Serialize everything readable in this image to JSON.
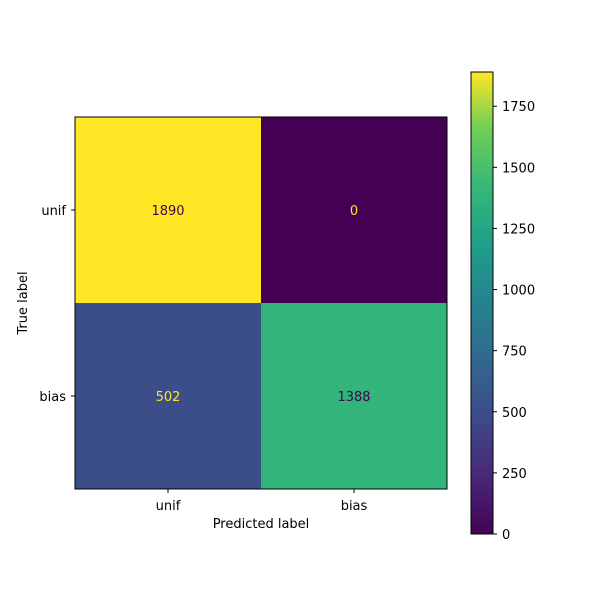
{
  "chart_data": {
    "type": "heatmap",
    "xlabel": "Predicted label",
    "ylabel": "True label",
    "x_categories": [
      "unif",
      "bias"
    ],
    "y_categories": [
      "unif",
      "bias"
    ],
    "matrix": [
      [
        1890,
        0
      ],
      [
        502,
        1388
      ]
    ],
    "cell_text_colors": [
      [
        "#440154",
        "#fde725"
      ],
      [
        "#fde725",
        "#440154"
      ]
    ],
    "colorbar": {
      "min": 0,
      "max": 1890,
      "ticks": [
        0,
        250,
        500,
        750,
        1000,
        1250,
        1500,
        1750
      ],
      "colormap": "viridis"
    },
    "grid": false
  }
}
